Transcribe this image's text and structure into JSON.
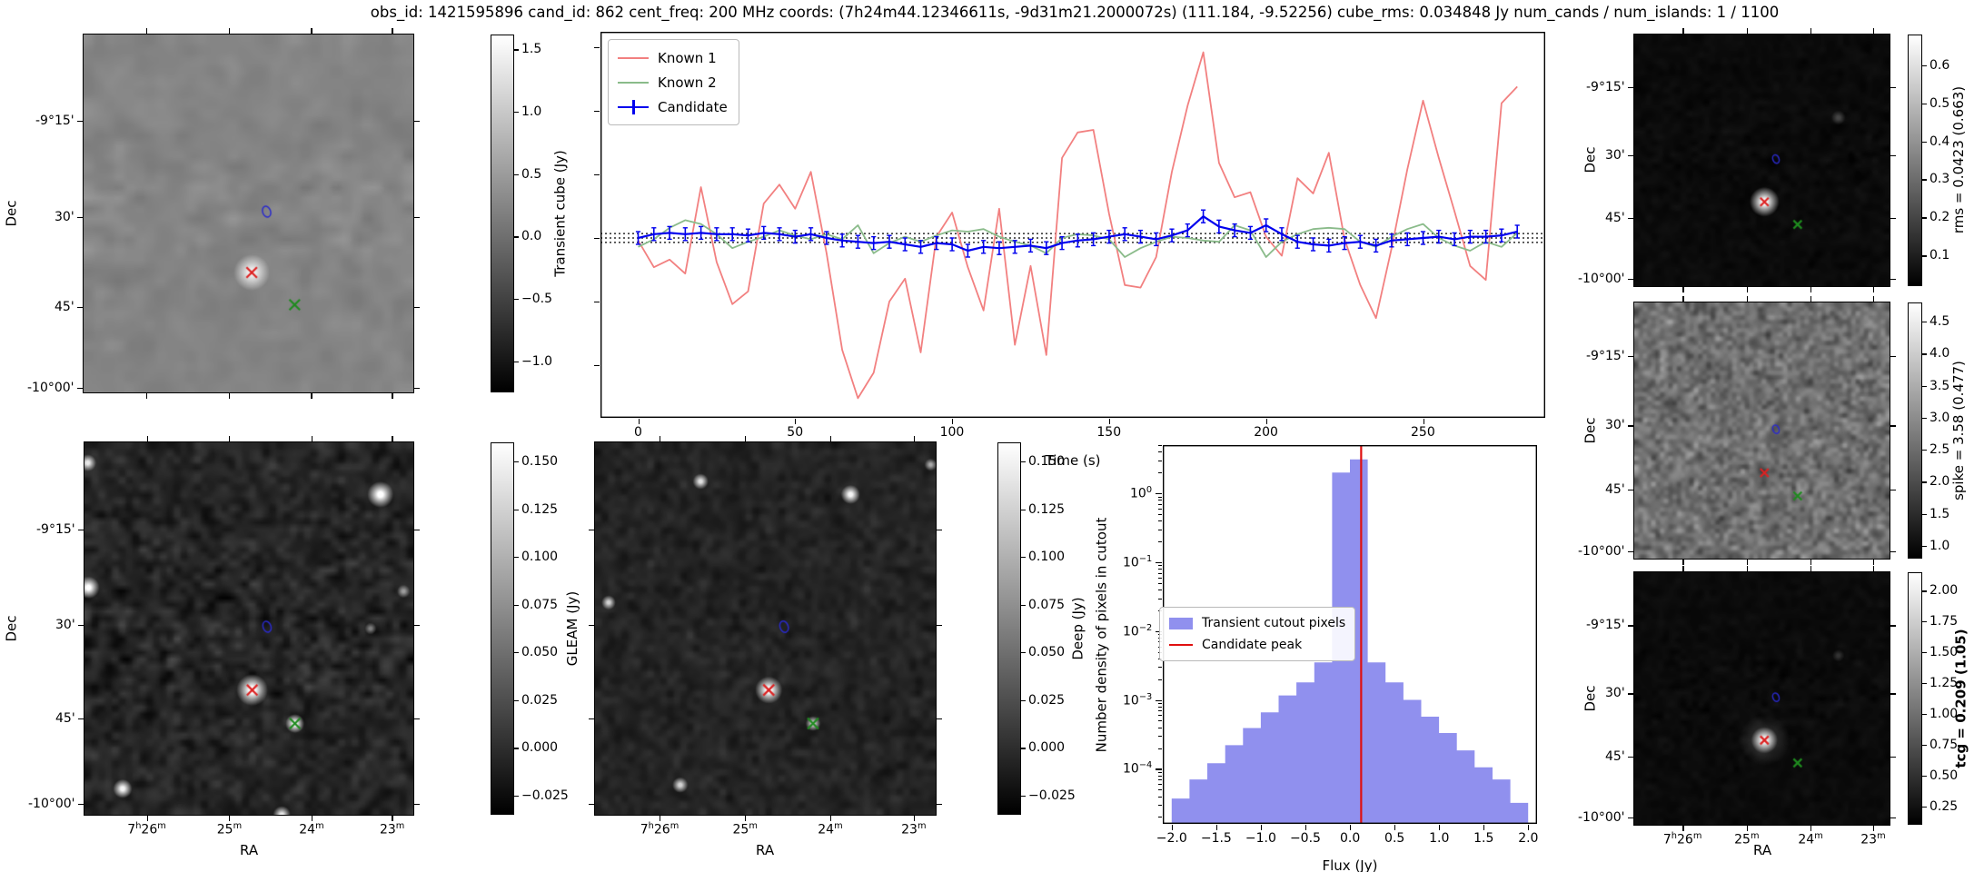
{
  "title": "obs_id: 1421595896 cand_id: 862 cent_freq: 200 MHz coords: (7h24m44.12346611s, -9d31m21.2000072s) (111.184, -9.52256) cube_rms: 0.034848 Jy num_cands / num_islands: 1 / 1100",
  "axis_labels": {
    "dec": "Dec",
    "ra": "RA",
    "time": "Time (s)",
    "flux": "Flux (Jy)"
  },
  "dec_tick_labels": [
    "-9°15'",
    "30'",
    "45'",
    "-10°00'"
  ],
  "ra_tick_labels": [
    "7h26m",
    "25m",
    "24m",
    "23m"
  ],
  "colors": {
    "known1": "#f28080",
    "known2": "#8abb8a",
    "candidate": "#0000ee",
    "hist_fill": "#9090ee",
    "peak_line": "#e01010",
    "marker_candidate": "#dd2222",
    "marker_known": "#1f8b1f",
    "contour": "#2a2acc"
  },
  "markers": [
    {
      "name": "candidate-x-marker",
      "color": "#dd2222"
    },
    {
      "name": "known-source-x-marker",
      "color": "#1f8b1f"
    },
    {
      "name": "island-contour",
      "color": "#2a2acc"
    }
  ],
  "chart_data": [
    {
      "type": "line",
      "title": "",
      "xlabel": "Time (s)",
      "ylabel": "",
      "xlim": [
        -12,
        289
      ],
      "ylim": [
        -1.41,
        1.62
      ],
      "xticks": [
        0,
        50,
        100,
        150,
        200,
        250
      ],
      "yticks_unlabeled": [
        1.5,
        1.0,
        0.5,
        0.0,
        -0.5,
        -1.0
      ],
      "hlines_dotted": [
        0.0348,
        0.0,
        -0.0348
      ],
      "legend_position": "upper left",
      "x_start": 0,
      "x_step": 5,
      "series": [
        {
          "name": "Known 1",
          "color": "#f28080",
          "values": [
            -0.02,
            -0.23,
            -0.17,
            -0.28,
            0.4,
            -0.19,
            -0.52,
            -0.42,
            0.27,
            0.42,
            0.23,
            0.52,
            -0.12,
            -0.88,
            -1.26,
            -1.06,
            -0.5,
            -0.32,
            -0.9,
            0.01,
            0.2,
            -0.23,
            -0.57,
            0.23,
            -0.84,
            -0.22,
            -0.92,
            0.63,
            0.83,
            0.85,
            0.19,
            -0.37,
            -0.39,
            -0.15,
            0.52,
            1.04,
            1.46,
            0.59,
            0.32,
            0.36,
            0.01,
            -0.14,
            0.47,
            0.35,
            0.67,
            -0.01,
            -0.37,
            -0.63,
            -0.08,
            0.54,
            1.08,
            0.63,
            0.21,
            -0.22,
            -0.33,
            1.06,
            1.19
          ]
        },
        {
          "name": "Known 2",
          "color": "#8abb8a",
          "values": [
            -0.07,
            -0.01,
            0.08,
            0.14,
            0.11,
            0.03,
            -0.08,
            -0.03,
            0.01,
            0.06,
            0.02,
            -0.01,
            0.03,
            -0.01,
            0.1,
            -0.12,
            -0.04,
            0.01,
            -0.03,
            0.02,
            0.06,
            0.05,
            0.07,
            0.01,
            -0.03,
            -0.06,
            -0.12,
            0.0,
            0.03,
            0.02,
            -0.01,
            -0.15,
            -0.08,
            -0.03,
            0.01,
            0.0,
            -0.02,
            -0.03,
            0.1,
            0.06,
            -0.15,
            -0.03,
            0.03,
            0.07,
            0.08,
            0.07,
            -0.03,
            -0.07,
            0.01,
            0.07,
            0.11,
            0.0,
            -0.06,
            -0.1,
            -0.03,
            -0.07,
            0.04
          ]
        },
        {
          "name": "Candidate",
          "color": "#0000ee",
          "errorbar": 0.05,
          "values": [
            0.0,
            0.03,
            0.04,
            0.03,
            0.04,
            0.03,
            0.03,
            0.02,
            0.04,
            0.03,
            0.01,
            0.03,
            0.0,
            -0.02,
            -0.03,
            -0.04,
            -0.03,
            -0.05,
            -0.07,
            -0.04,
            -0.05,
            -0.1,
            -0.07,
            -0.08,
            -0.07,
            -0.06,
            -0.08,
            -0.04,
            -0.02,
            -0.01,
            0.01,
            0.03,
            0.01,
            -0.01,
            0.02,
            0.06,
            0.17,
            0.09,
            0.06,
            0.04,
            0.1,
            0.03,
            -0.03,
            -0.05,
            -0.06,
            -0.04,
            -0.03,
            -0.06,
            -0.02,
            -0.01,
            0.0,
            0.01,
            -0.01,
            0.01,
            0.01,
            0.02,
            0.05
          ]
        }
      ]
    },
    {
      "type": "bar",
      "title": "",
      "xlabel": "Flux (Jy)",
      "ylabel": "Number density of pixels in cutout",
      "yscale": "log",
      "xlim": [
        -2.1,
        2.1
      ],
      "ylog_top": 0.7,
      "ylog_bottom": -4.8,
      "xticks": [
        "−2.0",
        "−1.5",
        "−1.0",
        "−0.5",
        "0.0",
        "0.5",
        "1.0",
        "1.5",
        "2.0"
      ],
      "xtick_values": [
        -2.0,
        -1.5,
        -1.0,
        -0.5,
        0.0,
        0.5,
        1.0,
        1.5,
        2.0
      ],
      "ytick_exponents": [
        "0",
        "−1",
        "−2",
        "−3",
        "−4"
      ],
      "ytick_exp_values": [
        0,
        -1,
        -2,
        -3,
        -4
      ],
      "bin_start": -2.0,
      "bin_width": 0.2,
      "densities": [
        3.7e-05,
        7e-05,
        0.00012,
        0.00022,
        0.00039,
        0.00066,
        0.00116,
        0.0018,
        0.0035,
        2.0,
        3.1,
        0.0035,
        0.0018,
        0.001,
        0.00057,
        0.00033,
        0.000185,
        0.000105,
        7e-05,
        3.2e-05
      ],
      "candidate_peak": 0.126,
      "legend": [
        {
          "label": "Transient cutout pixels",
          "color": "#9090ee",
          "kind": "patch"
        },
        {
          "label": "Candidate peak",
          "color": "#e01010",
          "kind": "line"
        }
      ]
    }
  ],
  "light_curve_legend": [
    "Known 1",
    "Known 2",
    "Candidate"
  ],
  "image_panels": [
    {
      "id": "transient",
      "colorbar_label": "Transient cube (Jy)",
      "bold": false,
      "cb_tick_labels": [
        "1.5",
        "1.0",
        "0.5",
        "0.0",
        "−0.5",
        "−1.0"
      ],
      "cb_tick_values": [
        1.5,
        1.0,
        0.5,
        0.0,
        -0.5,
        -1.0
      ],
      "cb_range": [
        1.62,
        -1.25
      ],
      "dec_labels": true,
      "ra_labels": false
    },
    {
      "id": "gleam",
      "colorbar_label": "GLEAM (Jy)",
      "bold": false,
      "cb_tick_labels": [
        "0.150",
        "0.125",
        "0.100",
        "0.075",
        "0.050",
        "0.025",
        "0.000",
        "−0.025"
      ],
      "cb_tick_values": [
        0.15,
        0.125,
        0.1,
        0.075,
        0.05,
        0.025,
        0.0,
        -0.025
      ],
      "cb_range": [
        0.16,
        -0.035
      ],
      "dec_labels": true,
      "ra_labels": true
    },
    {
      "id": "deep",
      "colorbar_label": "Deep (Jy)",
      "bold": false,
      "cb_tick_labels": [
        "0.150",
        "0.125",
        "0.100",
        "0.075",
        "0.050",
        "0.025",
        "0.000",
        "−0.025"
      ],
      "cb_tick_values": [
        0.15,
        0.125,
        0.1,
        0.075,
        0.05,
        0.025,
        0.0,
        -0.025
      ],
      "cb_range": [
        0.16,
        -0.035
      ],
      "dec_labels": false,
      "ra_labels": true
    },
    {
      "id": "rms",
      "colorbar_label": "rms = 0.0423 (0.663)",
      "bold": false,
      "cb_tick_labels": [
        "0.6",
        "0.5",
        "0.4",
        "0.3",
        "0.2",
        "0.1"
      ],
      "cb_tick_values": [
        0.6,
        0.5,
        0.4,
        0.3,
        0.2,
        0.1
      ],
      "cb_range": [
        0.68,
        0.02
      ],
      "dec_labels": true,
      "ra_labels": false
    },
    {
      "id": "spike",
      "colorbar_label": "spike = 3.58 (0.477)",
      "bold": false,
      "cb_tick_labels": [
        "4.5",
        "4.0",
        "3.5",
        "3.0",
        "2.5",
        "2.0",
        "1.5",
        "1.0"
      ],
      "cb_tick_values": [
        4.5,
        4.0,
        3.5,
        3.0,
        2.5,
        2.0,
        1.5,
        1.0
      ],
      "cb_range": [
        4.8,
        0.8
      ],
      "dec_labels": true,
      "ra_labels": false
    },
    {
      "id": "tcg",
      "colorbar_label": "tcg = 0.209 (1.05)",
      "bold": true,
      "cb_tick_labels": [
        "2.00",
        "1.75",
        "1.50",
        "1.25",
        "1.00",
        "0.75",
        "0.50",
        "0.25"
      ],
      "cb_tick_values": [
        2.0,
        1.75,
        1.5,
        1.25,
        1.0,
        0.75,
        0.5,
        0.25
      ],
      "cb_range": [
        2.15,
        0.1
      ],
      "dec_labels": true,
      "ra_labels": true
    }
  ]
}
